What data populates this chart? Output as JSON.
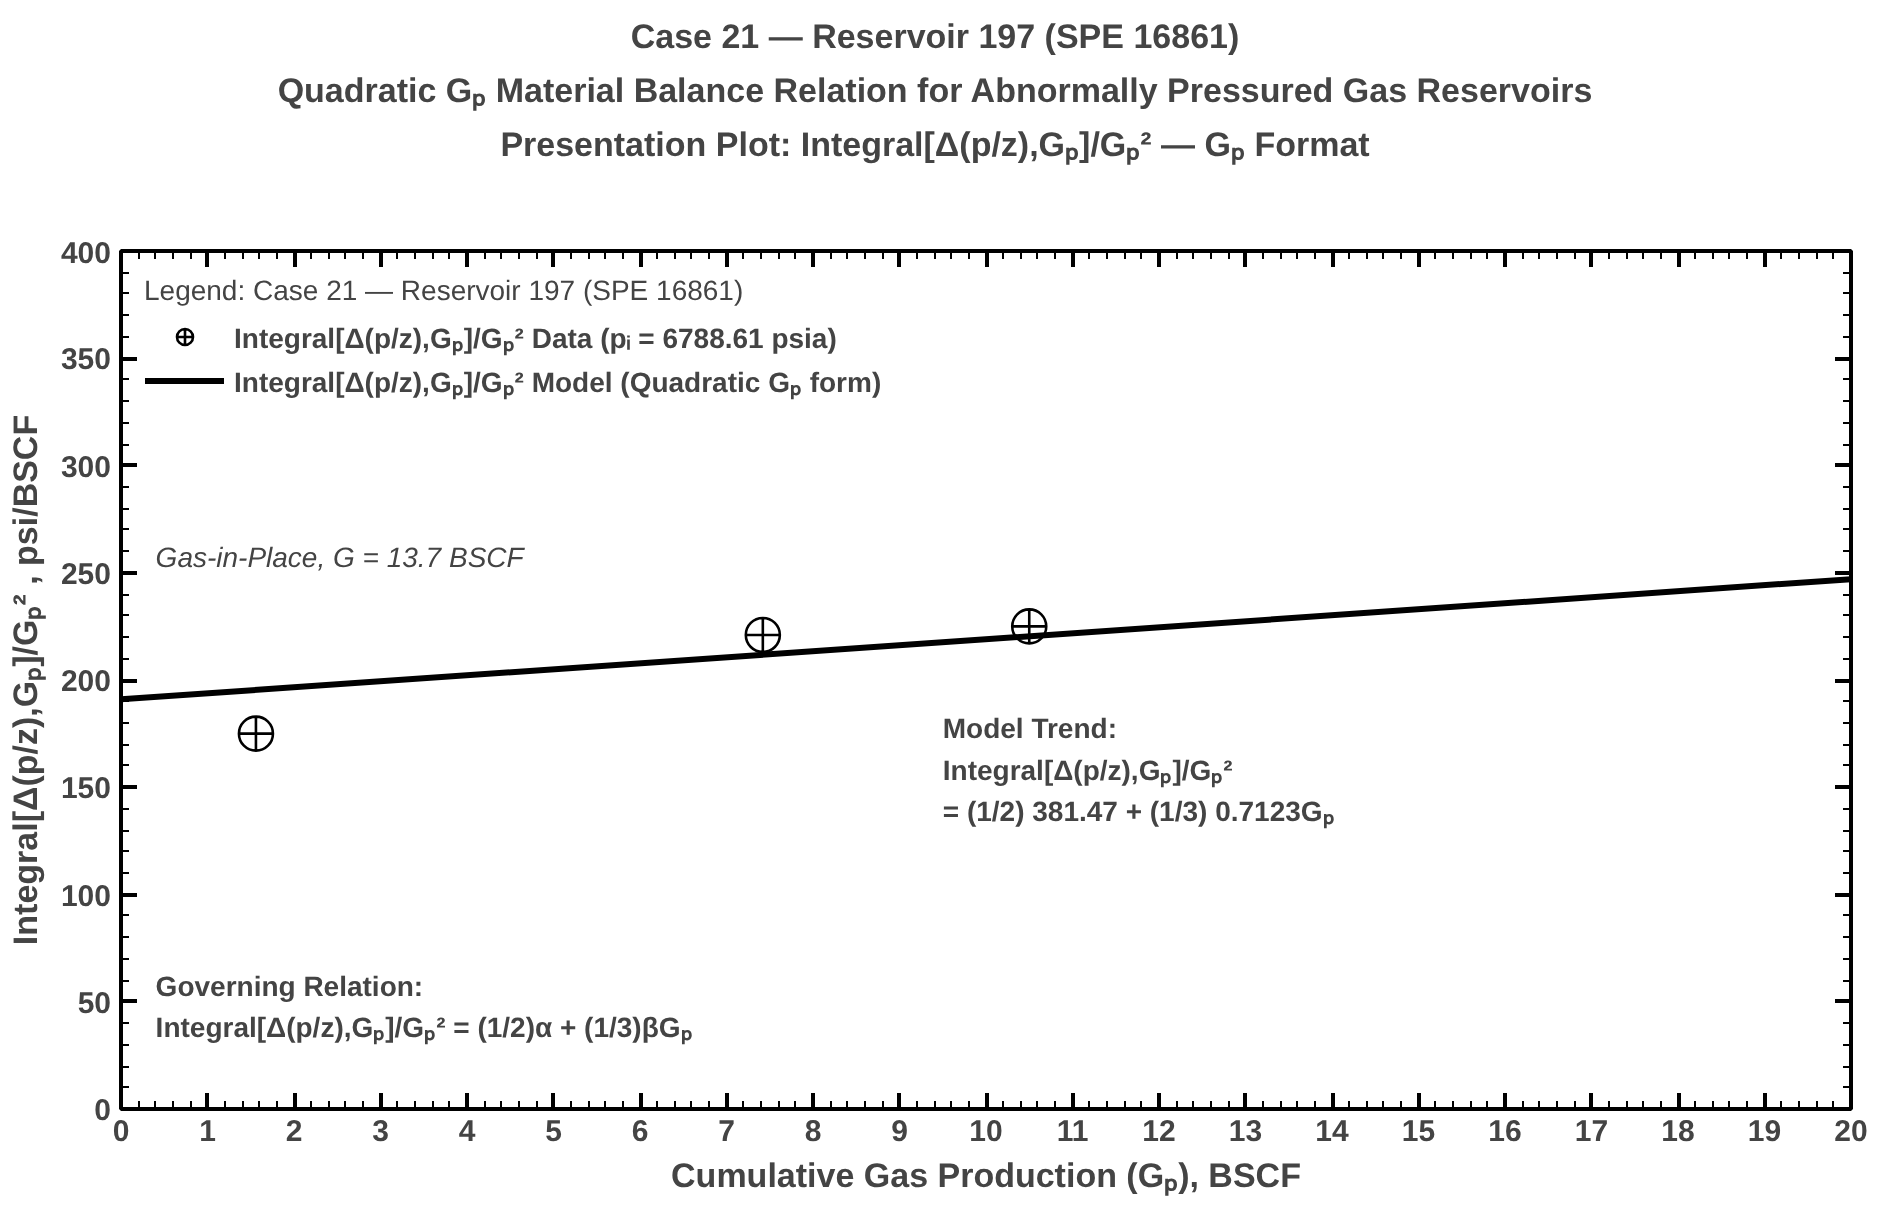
{
  "chart_data": {
    "type": "scatter",
    "title": "Case 21 — Reservoir 197 (SPE 16861)",
    "subtitle": "Quadratic Gₚ Material Balance Relation for Abnormally Pressured Gas Reservoirs\nPresentation Plot: Integral[Δ(p/z),Gₚ]/Gₚ² — Gₚ Format",
    "xlabel": "Cumulative Gas Production (Gₚ), BSCF",
    "ylabel": "Integral[Δ(p/z),Gₚ]/Gₚ² , psi/BSCF",
    "legend_title": "Legend: Case 21 — Reservoir 197 (SPE 16861)",
    "legend": "top left",
    "series": [
      {
        "name": "Integral[Δ(p/z),Gₚ]/Gₚ² Data (pᵢ = 6788.61 psia)",
        "marker": "circle",
        "color": "#000000",
        "x": [
          1.56,
          7.42,
          10.5
        ],
        "values": [
          175,
          221,
          225
        ]
      },
      {
        "name": "Integral[Δ(p/z),Gₚ]/Gₚ² Model (Quadratic Gₚ form)",
        "type": "line",
        "marker": "none",
        "line_style": "solid",
        "color": "#000000",
        "x": [
          0,
          20
        ],
        "values": [
          191,
          247
        ]
      }
    ],
    "annotations": [
      "Gas-in-Place, G = 13.7 BSCF",
      "Model Trend:\nIntegral[Δ(p/z),Gₚ]/Gₚ²\n      = (1/2) 381.47 + (1/3) 0.7123Gₚ",
      "Governing Relation:\n    Integral[Δ(p/z),Gₚ]/Gₚ² = (1/2)α + (1/3)βGₚ"
    ],
    "xlim": [
      0,
      20
    ],
    "ylim": [
      0,
      400
    ],
    "xticks": [
      0,
      1,
      2,
      3,
      4,
      5,
      6,
      7,
      8,
      9,
      10,
      11,
      12,
      13,
      14,
      15,
      16,
      17,
      18,
      19,
      20
    ],
    "yticks": [
      0,
      50,
      100,
      150,
      200,
      250,
      300,
      350,
      400
    ],
    "grid": false
  }
}
